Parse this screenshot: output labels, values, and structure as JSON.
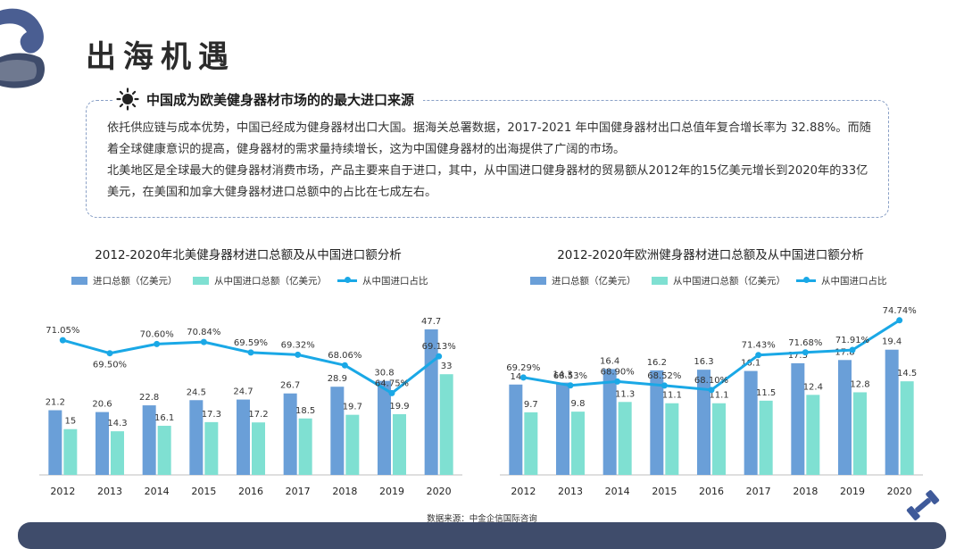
{
  "page": {
    "title": "出海机遇",
    "source_text": "数据来源：中金企信国际咨询"
  },
  "highlight": {
    "title": "中国成为欧美健身器材市场的的最大进口来源",
    "paragraph1": "依托供应链与成本优势，中国已经成为健身器材出口大国。据海关总署数据，2017-2021 年中国健身器材出口总值年复合增长率为 32.88%。而随着全球健康意识的提高，健身器材的需求量持续增长，这为中国健身器材的出海提供了广阔的市场。",
    "paragraph2": "北美地区是全球最大的健身器材消费市场，产品主要来自于进口，其中，从中国进口健身器材的贸易额从2012年的15亿美元增长到2020年的33亿美元，在美国和加拿大健身器材进口总额中的占比在七成左右。"
  },
  "colors": {
    "total_bar": "#6a9fd8",
    "china_bar": "#7fe0d2",
    "share_line": "#1aa8e6",
    "axis": "#bfbfbf",
    "bottom_bar": "#3f4c6b"
  },
  "chart_data": [
    {
      "type": "bar",
      "title": "2012-2020年北美健身器材进口总额及从中国进口额分析",
      "categories": [
        "2012",
        "2013",
        "2014",
        "2015",
        "2016",
        "2017",
        "2018",
        "2019",
        "2020"
      ],
      "series": [
        {
          "name": "进口总额（亿美元）",
          "values": [
            21.2,
            20.6,
            22.8,
            24.5,
            24.7,
            26.7,
            28.9,
            30.8,
            47.7
          ]
        },
        {
          "name": "从中国进口总额（亿美元）",
          "values": [
            15,
            14.3,
            16.1,
            17.3,
            17.2,
            18.5,
            19.7,
            19.9,
            33
          ]
        },
        {
          "name": "从中国进口占比",
          "type": "line",
          "labels": [
            "71.05%",
            "69.50%",
            "70.60%",
            "70.84%",
            "69.59%",
            "69.32%",
            "68.06%",
            "64.75%",
            "69.13%"
          ],
          "values": [
            71.05,
            69.5,
            70.6,
            70.84,
            69.59,
            69.32,
            68.06,
            64.75,
            69.13
          ]
        }
      ]
    },
    {
      "type": "bar",
      "title": "2012-2020年欧洲健身器材进口总额及从中国进口额分析",
      "categories": [
        "2012",
        "2013",
        "2014",
        "2015",
        "2016",
        "2017",
        "2018",
        "2019",
        "2020"
      ],
      "series": [
        {
          "name": "进口总额（亿美元）",
          "values": [
            14,
            14.3,
            16.4,
            16.2,
            16.3,
            16.1,
            17.3,
            17.8,
            19.4
          ]
        },
        {
          "name": "从中国进口总额（亿美元）",
          "values": [
            9.7,
            9.8,
            11.3,
            11.1,
            11.1,
            11.5,
            12.4,
            12.8,
            14.5
          ]
        },
        {
          "name": "从中国进口占比",
          "type": "line",
          "labels": [
            "69.29%",
            "68.53%",
            "68.90%",
            "68.52%",
            "68.10%",
            "71.43%",
            "71.68%",
            "71.91%",
            "74.74%"
          ],
          "values": [
            69.29,
            68.53,
            68.9,
            68.52,
            68.1,
            71.43,
            71.68,
            71.91,
            74.74
          ]
        }
      ]
    }
  ]
}
